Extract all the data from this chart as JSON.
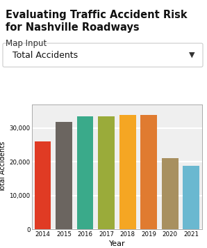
{
  "years": [
    "2014",
    "2015",
    "2016",
    "2017",
    "2018",
    "2019",
    "2020",
    "2021"
  ],
  "values": [
    26000,
    31800,
    33500,
    33500,
    33800,
    33800,
    21000,
    18800
  ],
  "bar_colors": [
    "#e03b24",
    "#6b6560",
    "#3aaa8a",
    "#9aab3a",
    "#f5a623",
    "#e07b30",
    "#a89060",
    "#6ab8d0"
  ],
  "ylabel": "Total Accidents",
  "xlabel": "Year",
  "ylim": [
    0,
    37000
  ],
  "yticks": [
    0,
    10000,
    20000,
    30000
  ],
  "bg_color": "#efefef",
  "grid_color": "#ffffff",
  "title_line1": "Evaluating Traffic Accident Risk",
  "title_line2": "for Nashville Roadways",
  "dropdown_label": "Map Input",
  "dropdown_text": "Total Accidents"
}
